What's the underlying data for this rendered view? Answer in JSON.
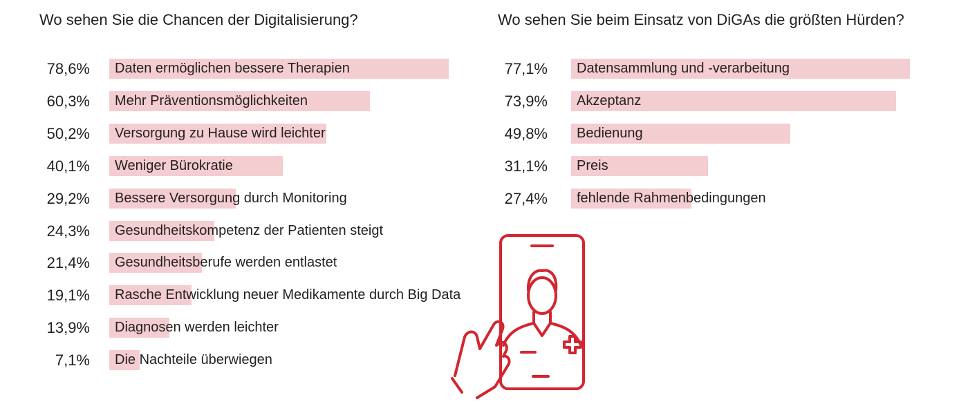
{
  "chart_data": [
    {
      "type": "bar",
      "orientation": "horizontal",
      "title": "Wo sehen Sie die Chancen der Digitalisierung?",
      "categories": [
        "Daten ermöglichen bessere Therapien",
        "Mehr Präventionsmöglichkeiten",
        "Versorgung zu Hause wird leichter",
        "Weniger Bürokratie",
        "Bessere Versorgung durch Monitoring",
        "Gesundheitskompetenz der Patienten steigt",
        "Gesundheitsberufe werden entlastet",
        "Rasche Entwicklung neuer Medikamente durch Big Data",
        "Diagnosen werden leichter",
        "Die Nachteile überwiegen"
      ],
      "values": [
        78.6,
        60.3,
        50.2,
        40.1,
        29.2,
        24.3,
        21.4,
        19.1,
        13.9,
        7.1
      ],
      "value_labels": [
        "78,6%",
        "60,3%",
        "50,2%",
        "40,1%",
        "29,2%",
        "24,3%",
        "21,4%",
        "19,1%",
        "13,9%",
        "7,1%"
      ],
      "xlim": [
        0,
        100
      ],
      "bar_color": "#f4cdd1"
    },
    {
      "type": "bar",
      "orientation": "horizontal",
      "title": "Wo sehen Sie beim Einsatz von DiGAs die größten Hürden?",
      "categories": [
        "Datensammlung und -verarbeitung",
        "Akzeptanz",
        "Bedienung",
        "Preis",
        "fehlende Rahmenbedingungen"
      ],
      "values": [
        77.1,
        73.9,
        49.8,
        31.1,
        27.4
      ],
      "value_labels": [
        "77,1%",
        "73,9%",
        "49,8%",
        "31,1%",
        "27,4%"
      ],
      "xlim": [
        0,
        100
      ],
      "bar_color": "#f4cdd1"
    }
  ],
  "illustration": {
    "icon": "smartphone-doctor-hand-icon",
    "color": "#d22630"
  }
}
